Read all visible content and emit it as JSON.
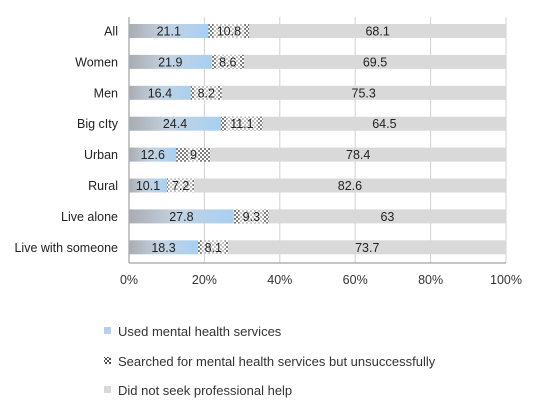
{
  "chart_data": {
    "type": "bar",
    "orientation": "horizontal",
    "stacked": true,
    "normalized": true,
    "categories": [
      "All",
      "Women",
      "Men",
      "Big cIty",
      "Urban",
      "Rural",
      "Live alone",
      "Live with someone"
    ],
    "series": [
      {
        "name": "Used mental health services",
        "values": [
          21.1,
          21.9,
          16.4,
          24.4,
          12.6,
          10.1,
          27.8,
          18.3
        ],
        "color": "#b3d0ea",
        "pattern": "solid"
      },
      {
        "name": "Searched for mental health services but unsuccessfully",
        "values": [
          10.8,
          8.6,
          8.2,
          11.1,
          9,
          7.2,
          9.3,
          8.1
        ],
        "color": "#ffffff",
        "pattern": "dotted"
      },
      {
        "name": "Did not seek professional help",
        "values": [
          68.1,
          69.5,
          75.3,
          64.5,
          78.4,
          82.6,
          63,
          73.7
        ],
        "color": "#d9d9d9",
        "pattern": "solid"
      }
    ],
    "data_labels": [
      [
        "21.1",
        "21.9",
        "16.4",
        "24.4",
        "12.6",
        "10.1",
        "27.8",
        "18.3"
      ],
      [
        "10.8",
        "8.6",
        "8.2",
        "11.1",
        "9",
        "7.2",
        "9.3",
        "8.1"
      ],
      [
        "68.1",
        "69.5",
        "75.3",
        "64.5",
        "78.4",
        "82.6",
        "63",
        "73.7"
      ]
    ],
    "x_ticks": [
      "0%",
      "20%",
      "40%",
      "60%",
      "80%",
      "100%"
    ],
    "xlim": [
      0,
      100
    ],
    "grid": true,
    "legend_position": "bottom"
  }
}
